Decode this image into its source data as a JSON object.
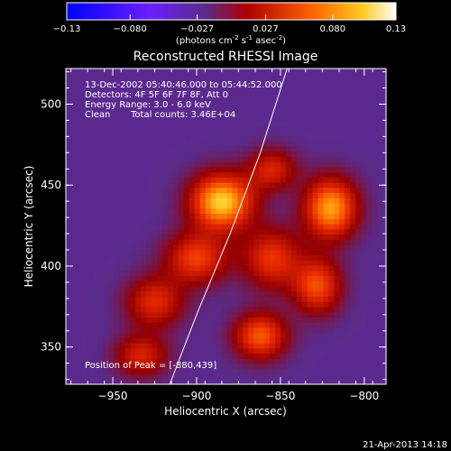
{
  "chart_data": {
    "type": "heatmap",
    "title": "Reconstructed RHESSI Image",
    "xlabel": "Heliocentric X (arcsec)",
    "ylabel": "Heliocentric Y (arcsec)",
    "xlim": [
      -978,
      -787
    ],
    "ylim": [
      327,
      522
    ],
    "x_ticks": [
      -950,
      -900,
      -850,
      -800
    ],
    "y_ticks": [
      350,
      400,
      450,
      500
    ],
    "colorbar": {
      "min": -0.13,
      "max": 0.13,
      "ticks": [
        "-0.13",
        "-0.080",
        "-0.027",
        "0.027",
        "0.080",
        "0.13"
      ],
      "tick_values": [
        -0.13,
        -0.08,
        -0.027,
        0.027,
        0.08,
        0.13
      ],
      "units_prefix": "(photons cm",
      "units_exp1": "-2",
      "units_mid": " s",
      "units_exp2": "-1",
      "units_mid2": " asec",
      "units_exp3": "-2",
      "units_suffix": ")"
    },
    "annotations": {
      "time": "13-Dec-2002 05:40:46.000 to 05:44:52.000",
      "detectors": "Detectors: 4F 5F 6F 7F 8F, Att 0",
      "energy": "Energy Range: 3.0 - 6.0 keV",
      "method": "Clean",
      "counts": "Total counts: 3.46E+04",
      "peak": "Position of Peak = [-880,439]"
    },
    "sources": [
      {
        "x": -885,
        "y": 440,
        "amp": 0.125,
        "sx": 13,
        "sy": 12
      },
      {
        "x": -820,
        "y": 436,
        "amp": 0.11,
        "sx": 11,
        "sy": 13
      },
      {
        "x": -862,
        "y": 357,
        "amp": 0.085,
        "sx": 11,
        "sy": 10
      },
      {
        "x": -900,
        "y": 405,
        "amp": 0.075,
        "sx": 13,
        "sy": 11
      },
      {
        "x": -925,
        "y": 378,
        "amp": 0.065,
        "sx": 12,
        "sy": 11
      },
      {
        "x": -855,
        "y": 405,
        "amp": 0.07,
        "sx": 12,
        "sy": 13
      },
      {
        "x": -828,
        "y": 388,
        "amp": 0.08,
        "sx": 10,
        "sy": 12
      },
      {
        "x": -933,
        "y": 345,
        "amp": 0.06,
        "sx": 11,
        "sy": 9
      },
      {
        "x": -855,
        "y": 460,
        "amp": 0.06,
        "sx": 10,
        "sy": 9
      }
    ],
    "limb_curve": [
      [
        -916,
        327
      ],
      [
        -900,
        370
      ],
      [
        -880,
        420
      ],
      [
        -862,
        470
      ],
      [
        -846,
        522
      ]
    ],
    "grid": false
  },
  "footer": {
    "date": "21-Apr-2013 14:18"
  }
}
